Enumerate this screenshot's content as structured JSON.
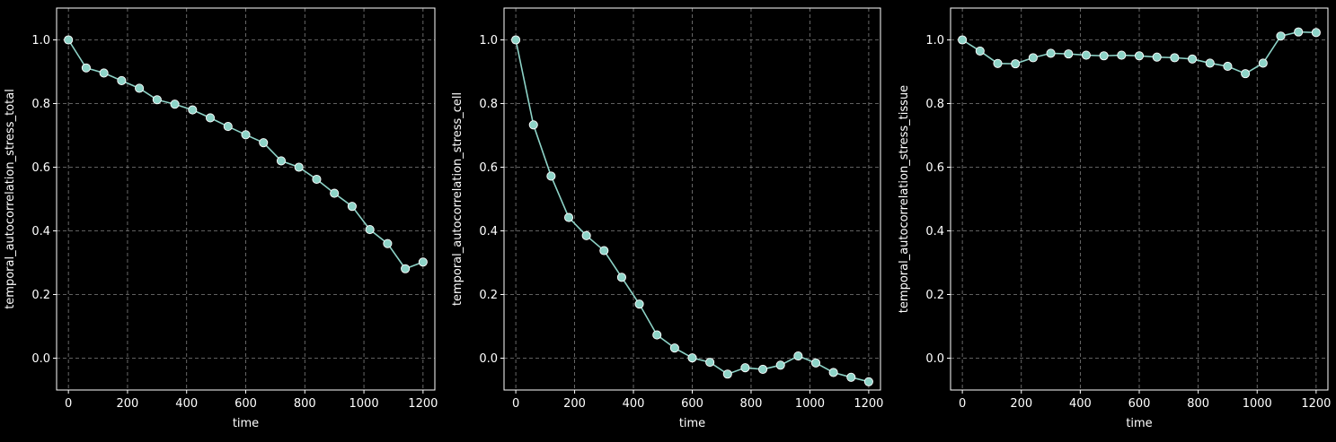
{
  "figure": {
    "background": "#000000",
    "line_color": "#8dd3c7",
    "grid_color": "#808080"
  },
  "chart_data": [
    {
      "type": "line",
      "xlabel": "time",
      "ylabel": "temporal_autocorrelation_stress_total",
      "xlim": [
        -40,
        1240
      ],
      "ylim": [
        -0.1,
        1.1
      ],
      "xticks": [
        0,
        200,
        400,
        600,
        800,
        1000,
        1200
      ],
      "yticks": [
        0.0,
        0.2,
        0.4,
        0.6,
        0.8,
        1.0
      ],
      "ytick_labels": [
        "0.0",
        "0.2",
        "0.4",
        "0.6",
        "0.8",
        "1.0"
      ],
      "grid": true,
      "series": [
        {
          "x": [
            0,
            60,
            120,
            180,
            240,
            300,
            360,
            420,
            480,
            540,
            600,
            660,
            720,
            780,
            840,
            900,
            960,
            1020,
            1080,
            1140,
            1200
          ],
          "y": [
            1.0,
            0.912,
            0.896,
            0.872,
            0.848,
            0.812,
            0.798,
            0.78,
            0.755,
            0.728,
            0.702,
            0.677,
            0.62,
            0.6,
            0.562,
            0.518,
            0.477,
            0.404,
            0.36,
            0.281,
            0.302
          ]
        }
      ]
    },
    {
      "type": "line",
      "xlabel": "time",
      "ylabel": "temporal_autocorrelation_stress_cell",
      "xlim": [
        -40,
        1240
      ],
      "ylim": [
        -0.1,
        1.1
      ],
      "xticks": [
        0,
        200,
        400,
        600,
        800,
        1000,
        1200
      ],
      "yticks": [
        0.0,
        0.2,
        0.4,
        0.6,
        0.8,
        1.0
      ],
      "ytick_labels": [
        "0.0",
        "0.2",
        "0.4",
        "0.6",
        "0.8",
        "1.0"
      ],
      "grid": true,
      "series": [
        {
          "x": [
            0,
            60,
            120,
            180,
            240,
            300,
            360,
            420,
            480,
            540,
            600,
            660,
            720,
            780,
            840,
            900,
            960,
            1020,
            1080,
            1140,
            1200
          ],
          "y": [
            1.0,
            0.733,
            0.572,
            0.442,
            0.385,
            0.338,
            0.254,
            0.17,
            0.073,
            0.032,
            0.001,
            -0.013,
            -0.05,
            -0.03,
            -0.035,
            -0.022,
            0.007,
            -0.015,
            -0.045,
            -0.06,
            -0.074
          ]
        }
      ]
    },
    {
      "type": "line",
      "xlabel": "time",
      "ylabel": "temporal_autocorrelation_stress_tissue",
      "xlim": [
        -40,
        1240
      ],
      "ylim": [
        -0.1,
        1.1
      ],
      "xticks": [
        0,
        200,
        400,
        600,
        800,
        1000,
        1200
      ],
      "yticks": [
        0.0,
        0.2,
        0.4,
        0.6,
        0.8,
        1.0
      ],
      "ytick_labels": [
        "0.0",
        "0.2",
        "0.4",
        "0.6",
        "0.8",
        "1.0"
      ],
      "grid": true,
      "series": [
        {
          "x": [
            0,
            60,
            120,
            180,
            240,
            300,
            360,
            420,
            480,
            540,
            600,
            660,
            720,
            780,
            840,
            900,
            960,
            1020,
            1080,
            1140,
            1200
          ],
          "y": [
            1.0,
            0.965,
            0.926,
            0.925,
            0.944,
            0.958,
            0.956,
            0.952,
            0.95,
            0.952,
            0.95,
            0.946,
            0.944,
            0.94,
            0.927,
            0.917,
            0.894,
            0.927,
            1.012,
            1.025,
            1.023
          ]
        }
      ]
    }
  ]
}
